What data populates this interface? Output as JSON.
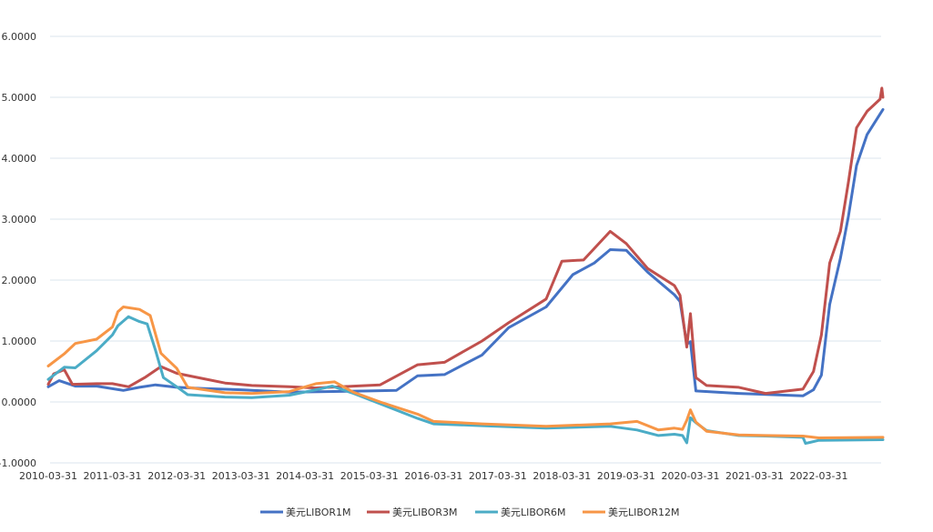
{
  "chart_data": {
    "type": "line",
    "title": "",
    "xlabel": "",
    "ylabel": "",
    "ylim": [
      -1.0,
      6.0
    ],
    "y_ticks": [
      "-1.0000",
      "0.0000",
      "1.0000",
      "2.0000",
      "3.0000",
      "4.0000",
      "5.0000",
      "6.0000"
    ],
    "x_tick_labels": [
      "2010-03-31",
      "2011-03-31",
      "2012-03-31",
      "2013-03-31",
      "2014-03-31",
      "2015-03-31",
      "2016-03-31",
      "2017-03-31",
      "2018-03-31",
      "2019-03-31",
      "2020-03-31",
      "2021-03-31",
      "2022-03-31"
    ],
    "x_range": [
      "2010-03-31",
      "2023-03-31"
    ],
    "grid": "horizontal",
    "legend_position": "bottom",
    "series": [
      {
        "name": "美元LIBOR1M",
        "color": "#4472c4",
        "points": [
          [
            "2010-03-31",
            0.25
          ],
          [
            "2010-06-01",
            0.35
          ],
          [
            "2010-09-01",
            0.26
          ],
          [
            "2011-01-01",
            0.26
          ],
          [
            "2011-06-01",
            0.19
          ],
          [
            "2011-09-01",
            0.24
          ],
          [
            "2011-12-01",
            0.28
          ],
          [
            "2012-03-31",
            0.24
          ],
          [
            "2012-09-01",
            0.22
          ],
          [
            "2013-03-31",
            0.2
          ],
          [
            "2014-01-01",
            0.16
          ],
          [
            "2015-03-31",
            0.18
          ],
          [
            "2015-09-01",
            0.19
          ],
          [
            "2015-12-31",
            0.43
          ],
          [
            "2016-06-01",
            0.45
          ],
          [
            "2016-12-31",
            0.77
          ],
          [
            "2017-06-01",
            1.22
          ],
          [
            "2017-12-31",
            1.56
          ],
          [
            "2018-06-01",
            2.09
          ],
          [
            "2018-10-01",
            2.28
          ],
          [
            "2018-12-31",
            2.5
          ],
          [
            "2019-04-01",
            2.49
          ],
          [
            "2019-08-01",
            2.13
          ],
          [
            "2019-12-31",
            1.76
          ],
          [
            "2020-02-01",
            1.65
          ],
          [
            "2020-03-10",
            0.95
          ],
          [
            "2020-03-31",
            0.99
          ],
          [
            "2020-05-01",
            0.18
          ],
          [
            "2020-12-31",
            0.14
          ],
          [
            "2021-12-31",
            0.1
          ],
          [
            "2022-03-01",
            0.2
          ],
          [
            "2022-04-15",
            0.44
          ],
          [
            "2022-06-01",
            1.6
          ],
          [
            "2022-08-01",
            2.36
          ],
          [
            "2022-09-15",
            3.04
          ],
          [
            "2022-11-01",
            3.88
          ],
          [
            "2022-12-31",
            4.39
          ],
          [
            "2023-03-31",
            4.8
          ]
        ]
      },
      {
        "name": "美元LIBOR3M",
        "color": "#c0504d",
        "points": [
          [
            "2010-03-31",
            0.29
          ],
          [
            "2010-05-01",
            0.46
          ],
          [
            "2010-06-30",
            0.53
          ],
          [
            "2010-08-15",
            0.29
          ],
          [
            "2011-01-01",
            0.3
          ],
          [
            "2011-03-31",
            0.3
          ],
          [
            "2011-07-01",
            0.25
          ],
          [
            "2011-10-01",
            0.4
          ],
          [
            "2012-01-01",
            0.58
          ],
          [
            "2012-03-31",
            0.47
          ],
          [
            "2012-09-01",
            0.38
          ],
          [
            "2012-12-31",
            0.31
          ],
          [
            "2013-06-01",
            0.27
          ],
          [
            "2013-12-31",
            0.25
          ],
          [
            "2014-06-01",
            0.23
          ],
          [
            "2014-12-31",
            0.26
          ],
          [
            "2015-06-01",
            0.28
          ],
          [
            "2015-12-31",
            0.61
          ],
          [
            "2016-06-01",
            0.65
          ],
          [
            "2016-12-31",
            1.0
          ],
          [
            "2017-06-01",
            1.3
          ],
          [
            "2017-12-31",
            1.69
          ],
          [
            "2018-03-31",
            2.31
          ],
          [
            "2018-08-01",
            2.33
          ],
          [
            "2018-12-31",
            2.8
          ],
          [
            "2019-04-01",
            2.6
          ],
          [
            "2019-08-01",
            2.19
          ],
          [
            "2019-12-31",
            1.91
          ],
          [
            "2020-02-01",
            1.75
          ],
          [
            "2020-03-10",
            0.9
          ],
          [
            "2020-03-31",
            1.45
          ],
          [
            "2020-05-01",
            0.4
          ],
          [
            "2020-07-01",
            0.27
          ],
          [
            "2020-12-31",
            0.24
          ],
          [
            "2021-06-01",
            0.14
          ],
          [
            "2021-12-31",
            0.21
          ],
          [
            "2022-03-01",
            0.5
          ],
          [
            "2022-04-15",
            1.1
          ],
          [
            "2022-06-01",
            2.28
          ],
          [
            "2022-08-01",
            2.8
          ],
          [
            "2022-09-15",
            3.6
          ],
          [
            "2022-11-01",
            4.5
          ],
          [
            "2022-12-31",
            4.77
          ],
          [
            "2023-03-15",
            4.97
          ],
          [
            "2023-03-25",
            5.15
          ],
          [
            "2023-03-31",
            5.0
          ]
        ]
      },
      {
        "name": "美元LIBOR6M",
        "color": "#4bacc6",
        "points": [
          [
            "2010-03-31",
            0.37
          ],
          [
            "2010-06-30",
            0.57
          ],
          [
            "2010-09-01",
            0.56
          ],
          [
            "2010-12-31",
            0.84
          ],
          [
            "2011-03-31",
            1.1
          ],
          [
            "2011-05-01",
            1.25
          ],
          [
            "2011-06-30",
            1.4
          ],
          [
            "2011-09-01",
            1.32
          ],
          [
            "2011-10-15",
            1.28
          ],
          [
            "2011-12-01",
            0.85
          ],
          [
            "2012-01-15",
            0.4
          ],
          [
            "2012-03-31",
            0.25
          ],
          [
            "2012-06-01",
            0.12
          ],
          [
            "2012-12-31",
            0.08
          ],
          [
            "2013-06-01",
            0.07
          ],
          [
            "2013-12-31",
            0.11
          ],
          [
            "2014-06-01",
            0.2
          ],
          [
            "2014-09-01",
            0.26
          ],
          [
            "2014-12-31",
            0.14
          ],
          [
            "2015-06-01",
            -0.03
          ],
          [
            "2015-12-31",
            -0.27
          ],
          [
            "2016-03-31",
            -0.36
          ],
          [
            "2016-12-31",
            -0.39
          ],
          [
            "2017-12-31",
            -0.43
          ],
          [
            "2018-12-31",
            -0.4
          ],
          [
            "2019-06-01",
            -0.46
          ],
          [
            "2019-10-01",
            -0.55
          ],
          [
            "2019-12-31",
            -0.53
          ],
          [
            "2020-02-15",
            -0.55
          ],
          [
            "2020-03-10",
            -0.67
          ],
          [
            "2020-03-31",
            -0.26
          ],
          [
            "2020-05-01",
            -0.34
          ],
          [
            "2020-07-01",
            -0.47
          ],
          [
            "2020-12-31",
            -0.55
          ],
          [
            "2021-06-01",
            -0.56
          ],
          [
            "2021-12-31",
            -0.58
          ],
          [
            "2022-01-15",
            -0.68
          ],
          [
            "2022-03-31",
            -0.63
          ],
          [
            "2023-03-31",
            -0.62
          ]
        ]
      },
      {
        "name": "美元LIBOR12M",
        "color": "#f79646",
        "points": [
          [
            "2010-03-31",
            0.59
          ],
          [
            "2010-06-30",
            0.79
          ],
          [
            "2010-09-01",
            0.96
          ],
          [
            "2010-12-31",
            1.03
          ],
          [
            "2011-03-31",
            1.23
          ],
          [
            "2011-05-01",
            1.48
          ],
          [
            "2011-06-01",
            1.56
          ],
          [
            "2011-09-01",
            1.52
          ],
          [
            "2011-11-01",
            1.42
          ],
          [
            "2012-01-01",
            0.8
          ],
          [
            "2012-03-31",
            0.55
          ],
          [
            "2012-06-01",
            0.24
          ],
          [
            "2012-12-31",
            0.15
          ],
          [
            "2013-06-01",
            0.14
          ],
          [
            "2013-12-31",
            0.17
          ],
          [
            "2014-06-01",
            0.3
          ],
          [
            "2014-09-15",
            0.33
          ],
          [
            "2014-12-31",
            0.16
          ],
          [
            "2015-06-01",
            0.0
          ],
          [
            "2015-12-31",
            -0.2
          ],
          [
            "2016-03-31",
            -0.32
          ],
          [
            "2016-12-31",
            -0.36
          ],
          [
            "2017-12-31",
            -0.4
          ],
          [
            "2018-12-31",
            -0.36
          ],
          [
            "2019-06-01",
            -0.32
          ],
          [
            "2019-10-01",
            -0.46
          ],
          [
            "2019-12-31",
            -0.43
          ],
          [
            "2020-02-15",
            -0.45
          ],
          [
            "2020-03-10",
            -0.3
          ],
          [
            "2020-03-31",
            -0.13
          ],
          [
            "2020-05-01",
            -0.33
          ],
          [
            "2020-07-01",
            -0.48
          ],
          [
            "2020-12-31",
            -0.54
          ],
          [
            "2021-06-01",
            -0.55
          ],
          [
            "2021-12-31",
            -0.56
          ],
          [
            "2022-03-31",
            -0.59
          ],
          [
            "2023-03-31",
            -0.58
          ]
        ]
      }
    ]
  }
}
